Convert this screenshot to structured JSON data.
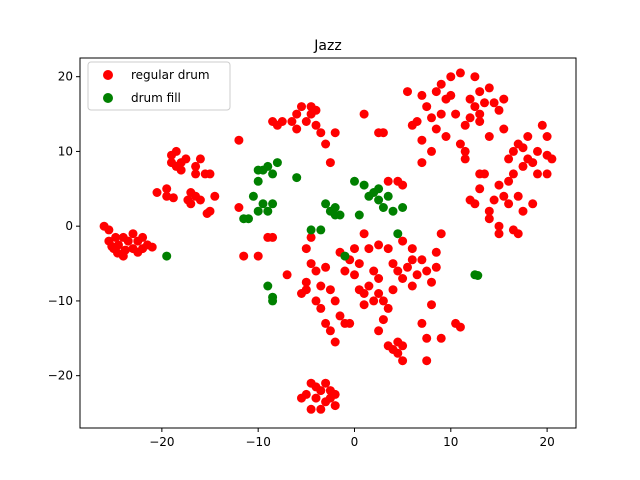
{
  "chart_data": {
    "type": "scatter",
    "title": "Jazz",
    "xlabel": "",
    "ylabel": "",
    "xlim": [
      -28.5,
      23
    ],
    "ylim": [
      -27,
      22.5
    ],
    "xticks": [
      -20,
      -10,
      0,
      10,
      20
    ],
    "yticks": [
      -20,
      -10,
      0,
      10,
      20
    ],
    "grid": false,
    "legend_position": "top-left",
    "series": [
      {
        "name": "regular drum",
        "color": "#ff0000",
        "points": [
          [
            -26,
            0
          ],
          [
            -25.5,
            -0.5
          ],
          [
            -25.5,
            -2
          ],
          [
            -25,
            -3
          ],
          [
            -24.8,
            -1.5
          ],
          [
            -24.5,
            -2.5
          ],
          [
            -24,
            -4
          ],
          [
            -24,
            -1.5
          ],
          [
            -23.5,
            -2
          ],
          [
            -23,
            -3
          ],
          [
            -23,
            -1
          ],
          [
            -22.5,
            -3.5
          ],
          [
            -22.5,
            -2
          ],
          [
            -22,
            -1.5
          ],
          [
            -22,
            -3
          ],
          [
            -21.5,
            -2.5
          ],
          [
            -21,
            -2.8
          ],
          [
            -23.8,
            -3.2
          ],
          [
            -24.6,
            -3.6
          ],
          [
            -25.2,
            -2.7
          ],
          [
            -20.5,
            4.5
          ],
          [
            -19.5,
            4
          ],
          [
            -19.5,
            5
          ],
          [
            -19,
            8.5
          ],
          [
            -19,
            9.5
          ],
          [
            -18.5,
            8
          ],
          [
            -18.5,
            10
          ],
          [
            -18,
            7.5
          ],
          [
            -18,
            8.5
          ],
          [
            -17.5,
            9
          ],
          [
            -17,
            3
          ],
          [
            -17,
            4.5
          ],
          [
            -16.5,
            8
          ],
          [
            -16.5,
            7
          ],
          [
            -16.5,
            4
          ],
          [
            -16,
            9
          ],
          [
            -16,
            3.5
          ],
          [
            -15.5,
            7
          ],
          [
            -15,
            7
          ],
          [
            -15,
            2
          ],
          [
            -14.5,
            4
          ],
          [
            -17.3,
            3.5
          ],
          [
            -18.8,
            3.8
          ],
          [
            -15.3,
            1.7
          ],
          [
            -12,
            11.5
          ],
          [
            -12,
            2.5
          ],
          [
            -11.5,
            -4
          ],
          [
            -10,
            -4
          ],
          [
            -9,
            -1.5
          ],
          [
            -8.5,
            -1.5
          ],
          [
            -8.5,
            14
          ],
          [
            -8,
            13.5
          ],
          [
            -7.5,
            14
          ],
          [
            -7,
            -6.5
          ],
          [
            -6.5,
            14
          ],
          [
            -6,
            15
          ],
          [
            -6,
            13
          ],
          [
            -5.5,
            16
          ],
          [
            -5,
            14
          ],
          [
            -4.5,
            15
          ],
          [
            -4.5,
            16
          ],
          [
            -4,
            15.5
          ],
          [
            -4,
            13.5
          ],
          [
            -3.5,
            12.5
          ],
          [
            -3,
            11
          ],
          [
            -2.5,
            8.5
          ],
          [
            -2,
            12.5
          ],
          [
            -4.5,
            -1.5
          ],
          [
            -5,
            -3
          ],
          [
            -4.5,
            -5
          ],
          [
            -5,
            -8.5
          ],
          [
            -5.5,
            -9
          ],
          [
            -5,
            -7.5
          ],
          [
            -4,
            -6
          ],
          [
            -3.5,
            -8
          ],
          [
            -4,
            -10
          ],
          [
            -3.5,
            -11
          ],
          [
            -3,
            -13
          ],
          [
            -2.5,
            -14
          ],
          [
            -3,
            -5.5
          ],
          [
            -2.5,
            -8.5
          ],
          [
            -2,
            -10
          ],
          [
            -1.5,
            -12
          ],
          [
            -1,
            -13
          ],
          [
            -0.5,
            -13
          ],
          [
            -2,
            -15.5
          ],
          [
            -1.5,
            -3.5
          ],
          [
            -1,
            -6
          ],
          [
            -0.5,
            -4.5
          ],
          [
            0,
            -3
          ],
          [
            0.5,
            -5
          ],
          [
            0,
            -6.5
          ],
          [
            0.5,
            -8.5
          ],
          [
            1,
            -9
          ],
          [
            1,
            -10.5
          ],
          [
            1.5,
            -8
          ],
          [
            2,
            -10
          ],
          [
            2,
            -6
          ],
          [
            2.5,
            -7
          ],
          [
            2.5,
            -9
          ],
          [
            3,
            -10
          ],
          [
            3,
            -12.5
          ],
          [
            2.5,
            -14
          ],
          [
            3.5,
            -16
          ],
          [
            4,
            -16.5
          ],
          [
            4.5,
            -15.5
          ],
          [
            5,
            -16
          ],
          [
            4.5,
            -17
          ],
          [
            5,
            -18
          ],
          [
            3.5,
            -11
          ],
          [
            4,
            -8.5
          ],
          [
            4.5,
            -6
          ],
          [
            5,
            -7
          ],
          [
            5.5,
            -5.5
          ],
          [
            6,
            -8
          ],
          [
            6,
            -4.5
          ],
          [
            6.5,
            -6.5
          ],
          [
            7,
            -13
          ],
          [
            7.5,
            -15
          ],
          [
            7.5,
            -18
          ],
          [
            8,
            -10.5
          ],
          [
            8,
            -7.5
          ],
          [
            8.5,
            -5.5
          ],
          [
            8.5,
            -3.5
          ],
          [
            9,
            -1
          ],
          [
            9,
            -15
          ],
          [
            10.5,
            -13
          ],
          [
            11,
            -13.5
          ],
          [
            1,
            -1
          ],
          [
            1.5,
            -3
          ],
          [
            2.5,
            -2.5
          ],
          [
            3.5,
            -3
          ],
          [
            4,
            -5
          ],
          [
            5,
            -2
          ],
          [
            6,
            -3
          ],
          [
            7,
            -4.5
          ],
          [
            7.5,
            -6
          ],
          [
            1,
            15
          ],
          [
            2.5,
            12.5
          ],
          [
            3,
            12.5
          ],
          [
            3.5,
            6
          ],
          [
            4.5,
            6
          ],
          [
            5,
            5.5
          ],
          [
            5.5,
            18
          ],
          [
            6,
            13.5
          ],
          [
            6.5,
            14
          ],
          [
            7,
            17.5
          ],
          [
            7,
            11.5
          ],
          [
            7,
            8.5
          ],
          [
            7.5,
            16
          ],
          [
            8,
            14.5
          ],
          [
            8,
            10
          ],
          [
            8.5,
            13
          ],
          [
            8.5,
            18
          ],
          [
            9,
            19
          ],
          [
            9,
            15
          ],
          [
            9.5,
            17
          ],
          [
            9.5,
            12
          ],
          [
            10,
            20
          ],
          [
            10,
            17.5
          ],
          [
            10.5,
            15
          ],
          [
            11,
            11
          ],
          [
            11,
            20.5
          ],
          [
            11.5,
            10
          ],
          [
            11.5,
            13.5
          ],
          [
            12,
            17
          ],
          [
            12,
            14.5
          ],
          [
            12.5,
            20
          ],
          [
            12.5,
            16
          ],
          [
            13,
            18
          ],
          [
            13,
            15
          ],
          [
            13.5,
            16.5
          ],
          [
            14,
            18.5
          ],
          [
            14.5,
            16.5
          ],
          [
            15,
            15.5
          ],
          [
            15.5,
            17
          ],
          [
            15.5,
            13
          ],
          [
            12,
            3.5
          ],
          [
            12.5,
            3
          ],
          [
            13,
            7
          ],
          [
            13,
            5
          ],
          [
            13.5,
            7
          ],
          [
            14,
            2
          ],
          [
            14,
            1
          ],
          [
            15,
            0
          ],
          [
            15,
            -1
          ],
          [
            14.5,
            3.5
          ],
          [
            15.5,
            4
          ],
          [
            16,
            6
          ],
          [
            16,
            9
          ],
          [
            16.5,
            10
          ],
          [
            16.5,
            7
          ],
          [
            17,
            11
          ],
          [
            17,
            4
          ],
          [
            17.5,
            2
          ],
          [
            17.5,
            8
          ],
          [
            18,
            9
          ],
          [
            18,
            12
          ],
          [
            18.5,
            3
          ],
          [
            18.5,
            8.5
          ],
          [
            19,
            10
          ],
          [
            19,
            7
          ],
          [
            19.5,
            13.5
          ],
          [
            20,
            12
          ],
          [
            20,
            7
          ],
          [
            20,
            9.5
          ],
          [
            20.5,
            9
          ],
          [
            16.5,
            -0.5
          ],
          [
            17,
            -1
          ],
          [
            11.5,
            9
          ],
          [
            15,
            5.5
          ],
          [
            13,
            14
          ],
          [
            14,
            12
          ],
          [
            17.5,
            10.5
          ],
          [
            16,
            3
          ],
          [
            -5.5,
            -23
          ],
          [
            -5,
            -22.5
          ],
          [
            -4.5,
            -24.5
          ],
          [
            -4,
            -21.5
          ],
          [
            -4,
            -23
          ],
          [
            -3.5,
            -24.5
          ],
          [
            -3.5,
            -22
          ],
          [
            -3,
            -21
          ],
          [
            -2.5,
            -23
          ],
          [
            -2.5,
            -22
          ],
          [
            -2,
            -24
          ],
          [
            -2,
            -22.5
          ],
          [
            -4.5,
            -21
          ],
          [
            -3,
            -23.5
          ]
        ]
      },
      {
        "name": "drum fill",
        "color": "#008000",
        "points": [
          [
            -19.5,
            -4
          ],
          [
            -11.5,
            1
          ],
          [
            -11,
            1
          ],
          [
            -10.5,
            4
          ],
          [
            -10,
            2
          ],
          [
            -10,
            6
          ],
          [
            -10,
            7.5
          ],
          [
            -9.5,
            7.5
          ],
          [
            -9.5,
            3
          ],
          [
            -9,
            2
          ],
          [
            -9,
            8
          ],
          [
            -9,
            -8
          ],
          [
            -8.5,
            -10
          ],
          [
            -8.5,
            -9.5
          ],
          [
            -8.5,
            7
          ],
          [
            -8.5,
            3
          ],
          [
            -8,
            8.5
          ],
          [
            -6,
            6.5
          ],
          [
            -4.5,
            -0.5
          ],
          [
            -3.5,
            -0.5
          ],
          [
            -3,
            3
          ],
          [
            -2.5,
            2
          ],
          [
            -2,
            2.5
          ],
          [
            -2,
            1.5
          ],
          [
            -1.5,
            1.5
          ],
          [
            -1,
            -4
          ],
          [
            0,
            6
          ],
          [
            0.5,
            1.5
          ],
          [
            1,
            5.5
          ],
          [
            1.5,
            4
          ],
          [
            2,
            4.5
          ],
          [
            2.5,
            5
          ],
          [
            2.5,
            3.5
          ],
          [
            3,
            2.5
          ],
          [
            3.5,
            4
          ],
          [
            4,
            2
          ],
          [
            4.5,
            -1
          ],
          [
            5,
            2.5
          ],
          [
            12.5,
            -6.5
          ],
          [
            12.8,
            -6.6
          ]
        ]
      }
    ]
  }
}
